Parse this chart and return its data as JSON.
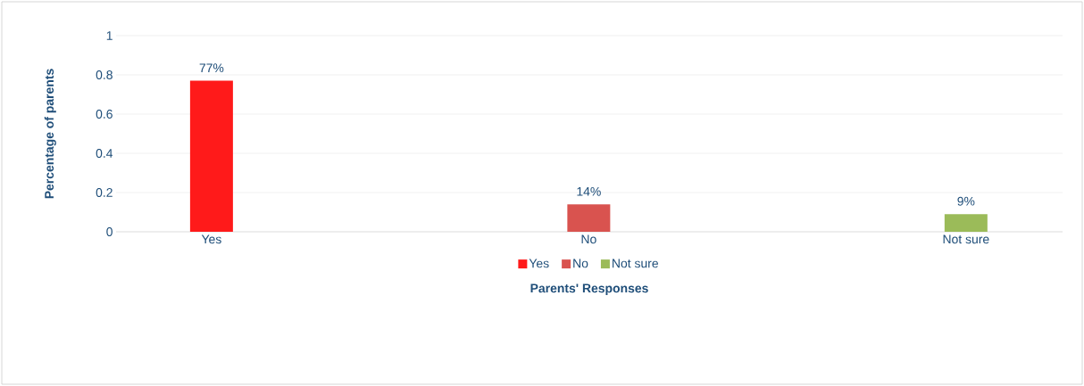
{
  "chart_data": {
    "type": "bar",
    "xlabel": "Parents' Responses",
    "ylabel": "Percentage of parents",
    "categories": [
      "Yes",
      "No",
      "Not sure"
    ],
    "series": [
      {
        "name": "Yes",
        "color": "#ff1a1a",
        "values": [
          0.77,
          null,
          null
        ],
        "value_labels": [
          "77%",
          null,
          null
        ]
      },
      {
        "name": "No",
        "color": "#d9534f",
        "values": [
          null,
          0.14,
          null
        ],
        "value_labels": [
          null,
          "14%",
          null
        ]
      },
      {
        "name": "Not sure",
        "color": "#9bbb59",
        "values": [
          null,
          null,
          0.09
        ],
        "value_labels": [
          null,
          null,
          "9%"
        ]
      }
    ],
    "ylim": [
      0,
      1
    ],
    "yticks": [
      0,
      0.2,
      0.4,
      0.6,
      0.8,
      1
    ],
    "grid": "y",
    "legend": "bottom"
  }
}
